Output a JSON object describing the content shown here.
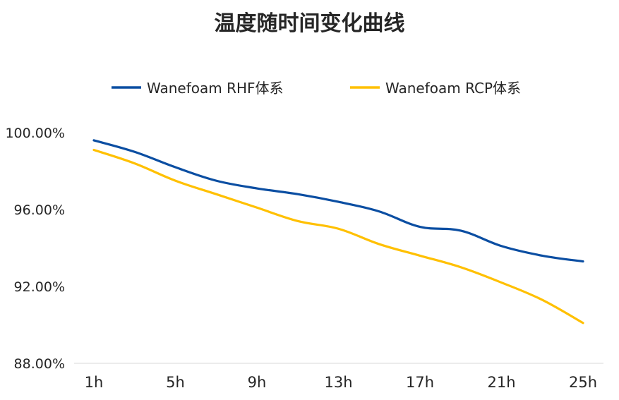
{
  "chart_data": {
    "type": "line",
    "title": "温度随时间变化曲线",
    "xlabel": "",
    "ylabel": "",
    "x": [
      "1h",
      "3h",
      "5h",
      "7h",
      "9h",
      "11h",
      "13h",
      "15h",
      "17h",
      "19h",
      "21h",
      "23h",
      "25h"
    ],
    "x_tick_labels": [
      "1h",
      "5h",
      "9h",
      "13h",
      "17h",
      "21h",
      "25h"
    ],
    "y_tick_labels": [
      "88.00%",
      "92.00%",
      "96.00%",
      "100.00%"
    ],
    "ylim": [
      88,
      100
    ],
    "grid": false,
    "legend_position": "top",
    "series": [
      {
        "name": "Wanefoam RHF体系",
        "color": "#0B4EA2",
        "values": [
          99.6,
          99.0,
          98.2,
          97.5,
          97.1,
          96.8,
          96.4,
          95.9,
          95.1,
          94.9,
          94.1,
          93.6,
          93.3
        ]
      },
      {
        "name": "Wanefoam RCP体系",
        "color": "#FFC000",
        "values": [
          99.1,
          98.4,
          97.5,
          96.8,
          96.1,
          95.4,
          95.0,
          94.2,
          93.6,
          93.0,
          92.2,
          91.3,
          90.1
        ]
      }
    ]
  }
}
